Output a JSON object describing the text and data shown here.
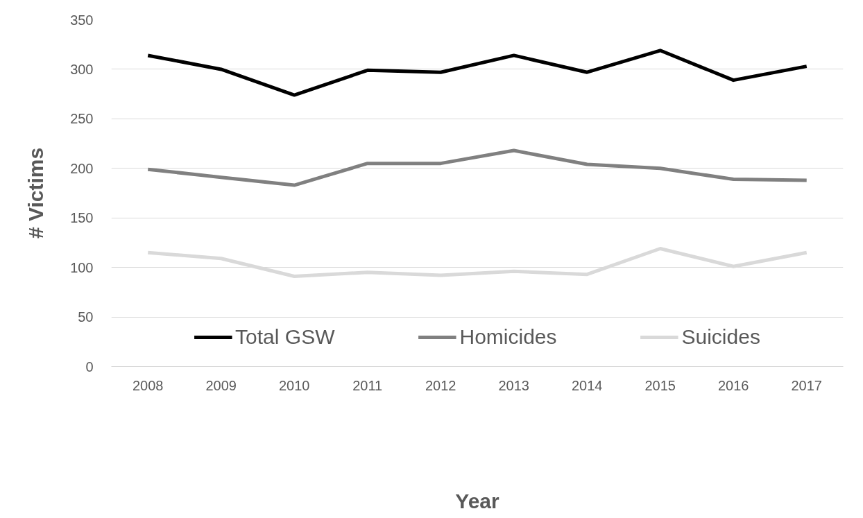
{
  "chart_data": {
    "type": "line",
    "xlabel": "Year",
    "ylabel": "# Victims",
    "categories": [
      "2008",
      "2009",
      "2010",
      "2011",
      "2012",
      "2013",
      "2014",
      "2015",
      "2016",
      "2017"
    ],
    "series": [
      {
        "name": "Total GSW",
        "color": "#000000",
        "values": [
          314,
          300,
          274,
          299,
          297,
          314,
          297,
          319,
          289,
          303
        ]
      },
      {
        "name": "Homicides",
        "color": "#808080",
        "values": [
          199,
          191,
          183,
          205,
          205,
          218,
          204,
          200,
          189,
          188
        ]
      },
      {
        "name": "Suicides",
        "color": "#d9d9d9",
        "values": [
          115,
          109,
          91,
          95,
          92,
          96,
          93,
          119,
          101,
          115
        ]
      }
    ],
    "ylim": [
      0,
      350
    ],
    "yticks": [
      0,
      50,
      100,
      150,
      200,
      250,
      300,
      350
    ],
    "grid": "y",
    "legend": "bottom",
    "marker": "none",
    "line_style": "solid"
  }
}
